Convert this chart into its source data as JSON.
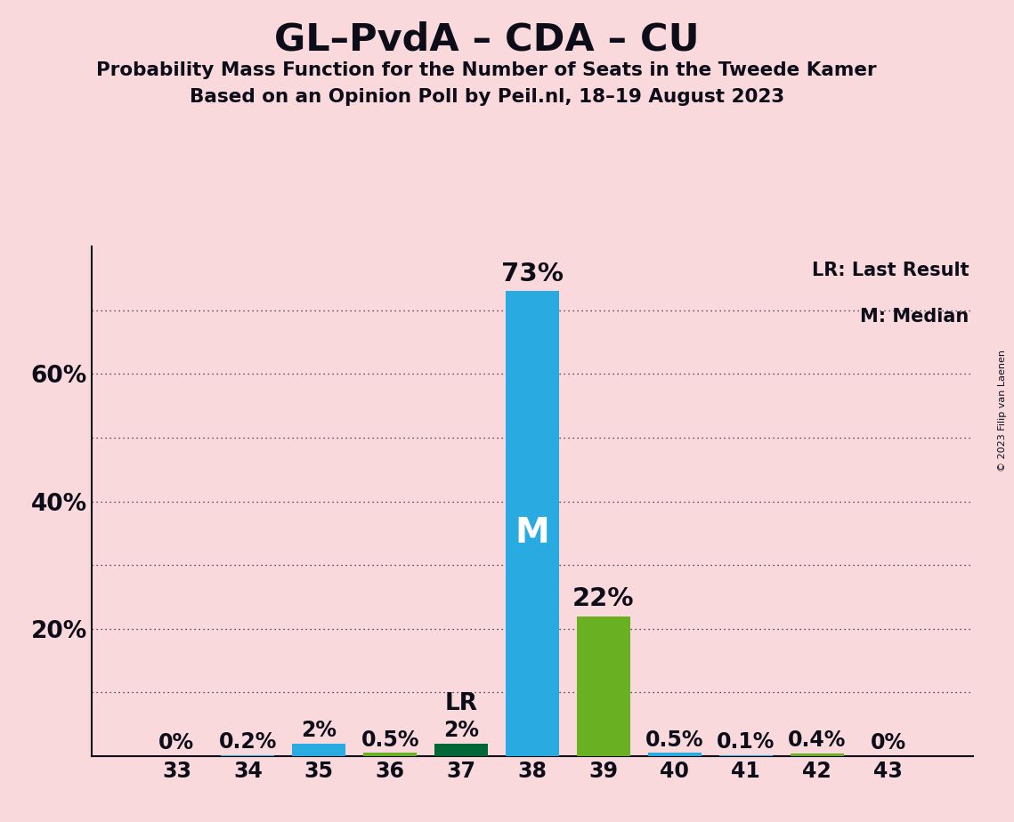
{
  "title": "GL–PvdA – CDA – CU",
  "subtitle1": "Probability Mass Function for the Number of Seats in the Tweede Kamer",
  "subtitle2": "Based on an Opinion Poll by Peil.nl, 18–19 August 2023",
  "copyright": "© 2023 Filip van Laenen",
  "seats": [
    33,
    34,
    35,
    36,
    37,
    38,
    39,
    40,
    41,
    42,
    43
  ],
  "probabilities": [
    0.0,
    0.2,
    2.0,
    0.5,
    2.0,
    73.0,
    22.0,
    0.5,
    0.1,
    0.4,
    0.0
  ],
  "labels": [
    "0%",
    "0.2%",
    "2%",
    "0.5%",
    "2%",
    "73%",
    "22%",
    "0.5%",
    "0.1%",
    "0.4%",
    "0%"
  ],
  "bar_colors": [
    "#29ABE2",
    "#29ABE2",
    "#29ABE2",
    "#6AB023",
    "#006837",
    "#29ABE2",
    "#6AB023",
    "#29ABE2",
    "#29ABE2",
    "#6AB023",
    "#29ABE2"
  ],
  "median_seat": 38,
  "last_result_seat": 37,
  "background_color": "#F9D9DC",
  "ylim": [
    0,
    80
  ],
  "grid_y_values": [
    10,
    20,
    30,
    40,
    50,
    60,
    70
  ],
  "ytick_positions": [
    20,
    40,
    60
  ],
  "ytick_labels": [
    "20%",
    "40%",
    "60%"
  ],
  "legend_lr": "LR: Last Result",
  "legend_m": "M: Median",
  "bar_width": 0.75
}
